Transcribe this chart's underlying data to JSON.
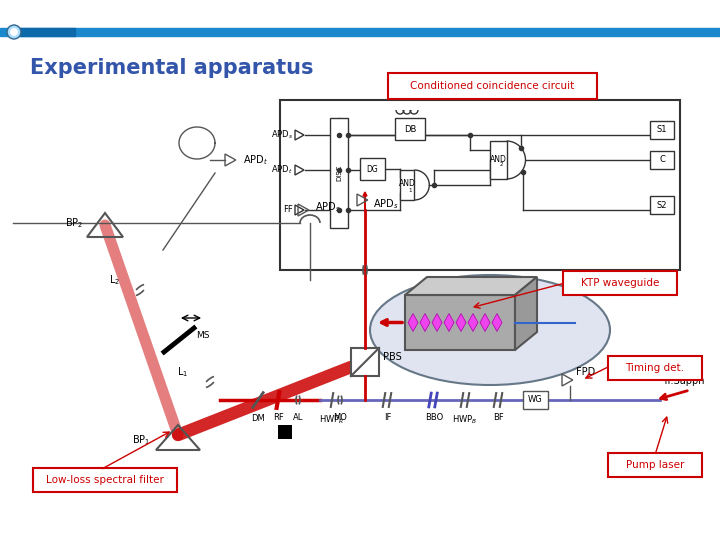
{
  "title": "Experimental apparatus",
  "title_color": "#3355aa",
  "title_fontsize": 15,
  "bg_color": "#ffffff",
  "red_box_color": "#cc0000",
  "annotations": {
    "conditioned_coincidence": "Conditioned coincidence circuit",
    "ktp_waveguide": "KTP waveguide",
    "timing_det": "Timing det.",
    "pump_laser": "Pump laser",
    "low_loss": "Low-loss spectral filter"
  }
}
